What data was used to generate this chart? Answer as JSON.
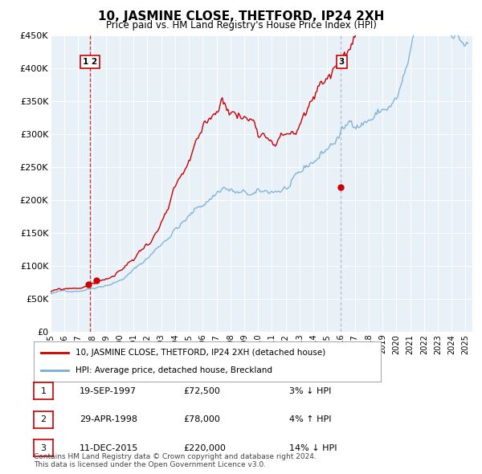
{
  "title": "10, JASMINE CLOSE, THETFORD, IP24 2XH",
  "subtitle": "Price paid vs. HM Land Registry's House Price Index (HPI)",
  "legend_line1": "10, JASMINE CLOSE, THETFORD, IP24 2XH (detached house)",
  "legend_line2": "HPI: Average price, detached house, Breckland",
  "sale_color": "#cc0000",
  "hpi_color": "#7aadd4",
  "background_color": "#ffffff",
  "plot_bg_color": "#e8f0f8",
  "grid_color": "#ffffff",
  "ylim": [
    0,
    450000
  ],
  "yticks": [
    0,
    50000,
    100000,
    150000,
    200000,
    250000,
    300000,
    350000,
    400000,
    450000
  ],
  "ytick_labels": [
    "£0",
    "£50K",
    "£100K",
    "£150K",
    "£200K",
    "£250K",
    "£300K",
    "£350K",
    "£400K",
    "£450K"
  ],
  "transactions": [
    {
      "label": "1",
      "date_year": 1997.72,
      "price": 72500,
      "pct": "3%",
      "direction": "↓",
      "date_str": "19-SEP-1997"
    },
    {
      "label": "2",
      "date_year": 1998.33,
      "price": 78000,
      "pct": "4%",
      "direction": "↑",
      "date_str": "29-APR-1998"
    },
    {
      "label": "3",
      "date_year": 2015.95,
      "price": 220000,
      "pct": "14%",
      "direction": "↓",
      "date_str": "11-DEC-2015"
    }
  ],
  "vline1_x": 1997.85,
  "vline2_x": 2016.0,
  "footnote": "Contains HM Land Registry data © Crown copyright and database right 2024.\nThis data is licensed under the Open Government Licence v3.0.",
  "xmin": 1995.0,
  "xmax": 2025.5
}
